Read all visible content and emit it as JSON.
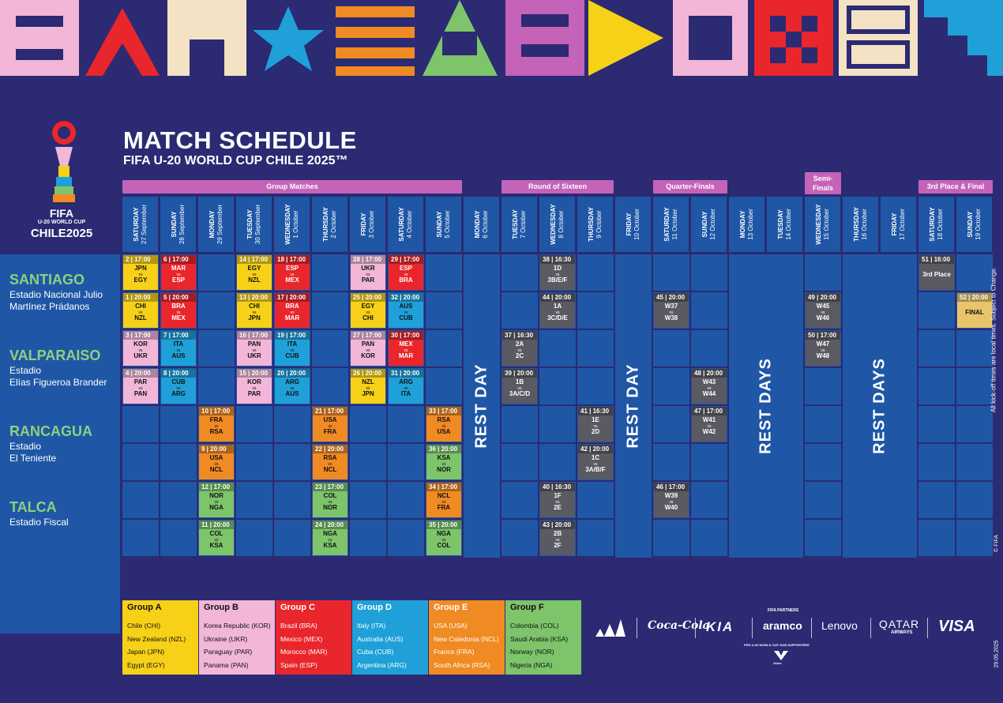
{
  "header": {
    "title": "MATCH SCHEDULE",
    "subtitle": "FIFA U-20 WORLD CUP CHILE 2025™"
  },
  "logo": {
    "line1": "FIFA",
    "line2": "U-20 WORLD CUP",
    "line3": "CHILE2025"
  },
  "stages": {
    "group": "Group Matches",
    "r16": "Round of Sixteen",
    "qf": "Quarter-Finals",
    "sf": "Semi-Finals",
    "final": "3rd Place & Final"
  },
  "days": [
    {
      "wd": "SATURDAY",
      "dt": "27 September"
    },
    {
      "wd": "SUNDAY",
      "dt": "28 September"
    },
    {
      "wd": "MONDAY",
      "dt": "29 September"
    },
    {
      "wd": "TUESDAY",
      "dt": "30 September"
    },
    {
      "wd": "WEDNESDAY",
      "dt": "1 October"
    },
    {
      "wd": "THURSDAY",
      "dt": "2 October"
    },
    {
      "wd": "FRIDAY",
      "dt": "3 October"
    },
    {
      "wd": "SATURDAY",
      "dt": "4 October"
    },
    {
      "wd": "SUNDAY",
      "dt": "5 October"
    },
    {
      "wd": "MONDAY",
      "dt": "6 October"
    },
    {
      "wd": "TUESDAY",
      "dt": "7 October"
    },
    {
      "wd": "WEDNESDAY",
      "dt": "8 October"
    },
    {
      "wd": "THURSDAY",
      "dt": "9 October"
    },
    {
      "wd": "FRIDAY",
      "dt": "10 October"
    },
    {
      "wd": "SATURDAY",
      "dt": "11 October"
    },
    {
      "wd": "SUNDAY",
      "dt": "12 October"
    },
    {
      "wd": "MONDAY",
      "dt": "13 October"
    },
    {
      "wd": "TUESDAY",
      "dt": "14 October"
    },
    {
      "wd": "WEDNESDAY",
      "dt": "15 October"
    },
    {
      "wd": "THURSDAY",
      "dt": "16 October"
    },
    {
      "wd": "FRIDAY",
      "dt": "17 October"
    },
    {
      "wd": "SATURDAY",
      "dt": "18 October"
    },
    {
      "wd": "SUNDAY",
      "dt": "19 October"
    }
  ],
  "venues": [
    {
      "city": "SANTIAGO",
      "stadium1": "Estadio Nacional Julio",
      "stadium2": "Martínez Prádanos"
    },
    {
      "city": "VALPARAISO",
      "stadium1": "Estadio",
      "stadium2": "Elías Figueroa Brander"
    },
    {
      "city": "RANCAGUA",
      "stadium1": "Estadio",
      "stadium2": "El Teniente"
    },
    {
      "city": "TALCA",
      "stadium1": "Estadio Fiscal",
      "stadium2": ""
    }
  ],
  "rest": {
    "day": "REST DAY",
    "days": "REST DAYS"
  },
  "colors": {
    "A": "#f7d117",
    "B": "#f2b6d8",
    "C": "#e8262b",
    "D": "#1fa0d8",
    "E": "#f08a22",
    "F": "#7dc46b",
    "KO": "#5a5a63",
    "FINAL": "#e8c56a"
  },
  "matches": [
    {
      "num": "2",
      "time": "17:00",
      "t1": "JPN",
      "t2": "EGY",
      "g": "A",
      "d": 0,
      "r": 0
    },
    {
      "num": "1",
      "time": "20:00",
      "t1": "CHI",
      "t2": "NZL",
      "g": "A",
      "d": 0,
      "r": 1
    },
    {
      "num": "3",
      "time": "17:00",
      "t1": "KOR",
      "t2": "UKR",
      "g": "B",
      "d": 0,
      "r": 2
    },
    {
      "num": "4",
      "time": "20:00",
      "t1": "PAR",
      "t2": "PAN",
      "g": "B",
      "d": 0,
      "r": 3
    },
    {
      "num": "6",
      "time": "17:00",
      "t1": "MAR",
      "t2": "ESP",
      "g": "C",
      "d": 1,
      "r": 0
    },
    {
      "num": "5",
      "time": "20:00",
      "t1": "BRA",
      "t2": "MEX",
      "g": "C",
      "d": 1,
      "r": 1
    },
    {
      "num": "7",
      "time": "17:00",
      "t1": "ITA",
      "t2": "AUS",
      "g": "D",
      "d": 1,
      "r": 2
    },
    {
      "num": "8",
      "time": "20:00",
      "t1": "CUB",
      "t2": "ARG",
      "g": "D",
      "d": 1,
      "r": 3
    },
    {
      "num": "10",
      "time": "17:00",
      "t1": "FRA",
      "t2": "RSA",
      "g": "E",
      "d": 2,
      "r": 4
    },
    {
      "num": "9",
      "time": "20:00",
      "t1": "USA",
      "t2": "NCL",
      "g": "E",
      "d": 2,
      "r": 5
    },
    {
      "num": "12",
      "time": "17:00",
      "t1": "NOR",
      "t2": "NGA",
      "g": "F",
      "d": 2,
      "r": 6
    },
    {
      "num": "11",
      "time": "20:00",
      "t1": "COL",
      "t2": "KSA",
      "g": "F",
      "d": 2,
      "r": 7
    },
    {
      "num": "14",
      "time": "17:00",
      "t1": "EGY",
      "t2": "NZL",
      "g": "A",
      "d": 3,
      "r": 0
    },
    {
      "num": "13",
      "time": "20:00",
      "t1": "CHI",
      "t2": "JPN",
      "g": "A",
      "d": 3,
      "r": 1
    },
    {
      "num": "16",
      "time": "17:00",
      "t1": "PAN",
      "t2": "UKR",
      "g": "B",
      "d": 3,
      "r": 2
    },
    {
      "num": "15",
      "time": "20:00",
      "t1": "KOR",
      "t2": "PAR",
      "g": "B",
      "d": 3,
      "r": 3
    },
    {
      "num": "18",
      "time": "17:00",
      "t1": "ESP",
      "t2": "MEX",
      "g": "C",
      "d": 4,
      "r": 0
    },
    {
      "num": "17",
      "time": "20:00",
      "t1": "BRA",
      "t2": "MAR",
      "g": "C",
      "d": 4,
      "r": 1
    },
    {
      "num": "19",
      "time": "17:00",
      "t1": "ITA",
      "t2": "CUB",
      "g": "D",
      "d": 4,
      "r": 2
    },
    {
      "num": "20",
      "time": "20:00",
      "t1": "ARG",
      "t2": "AUS",
      "g": "D",
      "d": 4,
      "r": 3
    },
    {
      "num": "21",
      "time": "17:00",
      "t1": "USA",
      "t2": "FRA",
      "g": "E",
      "d": 5,
      "r": 4
    },
    {
      "num": "22",
      "time": "20:00",
      "t1": "RSA",
      "t2": "NCL",
      "g": "E",
      "d": 5,
      "r": 5
    },
    {
      "num": "23",
      "time": "17:00",
      "t1": "COL",
      "t2": "NOR",
      "g": "F",
      "d": 5,
      "r": 6
    },
    {
      "num": "24",
      "time": "20:00",
      "t1": "NGA",
      "t2": "KSA",
      "g": "F",
      "d": 5,
      "r": 7
    },
    {
      "num": "28",
      "time": "17:00",
      "t1": "UKR",
      "t2": "PAR",
      "g": "B",
      "d": 6,
      "r": 0
    },
    {
      "num": "25",
      "time": "20:00",
      "t1": "EGY",
      "t2": "CHI",
      "g": "A",
      "d": 6,
      "r": 1
    },
    {
      "num": "27",
      "time": "17:00",
      "t1": "PAN",
      "t2": "KOR",
      "g": "B",
      "d": 6,
      "r": 2
    },
    {
      "num": "26",
      "time": "20:00",
      "t1": "NZL",
      "t2": "JPN",
      "g": "A",
      "d": 6,
      "r": 3
    },
    {
      "num": "29",
      "time": "17:00",
      "t1": "ESP",
      "t2": "BRA",
      "g": "C",
      "d": 7,
      "r": 0
    },
    {
      "num": "32",
      "time": "20:00",
      "t1": "AUS",
      "t2": "CUB",
      "g": "D",
      "d": 7,
      "r": 1
    },
    {
      "num": "30",
      "time": "17:00",
      "t1": "MEX",
      "t2": "MAR",
      "g": "C",
      "d": 7,
      "r": 2
    },
    {
      "num": "31",
      "time": "20:00",
      "t1": "ARG",
      "t2": "ITA",
      "g": "D",
      "d": 7,
      "r": 3
    },
    {
      "num": "33",
      "time": "17:00",
      "t1": "RSA",
      "t2": "USA",
      "g": "E",
      "d": 8,
      "r": 4
    },
    {
      "num": "36",
      "time": "20:00",
      "t1": "KSA",
      "t2": "NOR",
      "g": "F",
      "d": 8,
      "r": 5
    },
    {
      "num": "34",
      "time": "17:00",
      "t1": "NCL",
      "t2": "FRA",
      "g": "E",
      "d": 8,
      "r": 6
    },
    {
      "num": "35",
      "time": "20:00",
      "t1": "NGA",
      "t2": "COL",
      "g": "F",
      "d": 8,
      "r": 7
    },
    {
      "num": "37",
      "time": "16:30",
      "t1": "2A",
      "t2": "2C",
      "g": "KO",
      "d": 10,
      "r": 2
    },
    {
      "num": "39",
      "time": "20:00",
      "t1": "1B",
      "t2": "3A/C/D",
      "g": "KO",
      "d": 10,
      "r": 3
    },
    {
      "num": "38",
      "time": "16:30",
      "t1": "1D",
      "t2": "3B/E/F",
      "g": "KO",
      "d": 11,
      "r": 0
    },
    {
      "num": "44",
      "time": "20:00",
      "t1": "1A",
      "t2": "3C/D/E",
      "g": "KO",
      "d": 11,
      "r": 1
    },
    {
      "num": "40",
      "time": "16:30",
      "t1": "1F",
      "t2": "2E",
      "g": "KO",
      "d": 11,
      "r": 6
    },
    {
      "num": "43",
      "time": "20:00",
      "t1": "2B",
      "t2": "2F",
      "g": "KO",
      "d": 11,
      "r": 7
    },
    {
      "num": "41",
      "time": "16:30",
      "t1": "1E",
      "t2": "2D",
      "g": "KO",
      "d": 12,
      "r": 4
    },
    {
      "num": "42",
      "time": "20:00",
      "t1": "1C",
      "t2": "3A/B/F",
      "g": "KO",
      "d": 12,
      "r": 5
    },
    {
      "num": "45",
      "time": "20:00",
      "t1": "W37",
      "t2": "W38",
      "g": "KO",
      "d": 14,
      "r": 1
    },
    {
      "num": "46",
      "time": "17:00",
      "t1": "W39",
      "t2": "W40",
      "g": "KO",
      "d": 14,
      "r": 6
    },
    {
      "num": "48",
      "time": "20:00",
      "t1": "W43",
      "t2": "W44",
      "g": "KO",
      "d": 15,
      "r": 3
    },
    {
      "num": "47",
      "time": "17:00",
      "t1": "W41",
      "t2": "W42",
      "g": "KO",
      "d": 15,
      "r": 4
    },
    {
      "num": "49",
      "time": "20:00",
      "t1": "W45",
      "t2": "W46",
      "g": "KO",
      "d": 18,
      "r": 1
    },
    {
      "num": "50",
      "time": "17:00",
      "t1": "W47",
      "t2": "W48",
      "g": "KO",
      "d": 18,
      "r": 2
    },
    {
      "num": "51",
      "time": "16:00",
      "t1": "3rd Place",
      "t2": "",
      "g": "KO",
      "d": 21,
      "r": 0
    },
    {
      "num": "52",
      "time": "20:00",
      "t1": "FINAL",
      "t2": "",
      "g": "FINAL",
      "d": 22,
      "r": 1
    }
  ],
  "vs": "vs",
  "groups": [
    {
      "label": "Group A",
      "key": "A",
      "teams": [
        "Chile (CHI)",
        "New Zealand (NZL)",
        "Japan (JPN)",
        "Egypt (EGY)"
      ]
    },
    {
      "label": "Group B",
      "key": "B",
      "teams": [
        "Korea Republic (KOR)",
        "Ukraine (UKR)",
        "Paraguay (PAR)",
        "Panama (PAN)"
      ]
    },
    {
      "label": "Group C",
      "key": "C",
      "teams": [
        "Brazil (BRA)",
        "Mexico (MEX)",
        "Morocco (MAR)",
        "Spain (ESP)"
      ]
    },
    {
      "label": "Group D",
      "key": "D",
      "teams": [
        "Italy (ITA)",
        "Australia (AUS)",
        "Cuba (CUB)",
        "Argentina (ARG)"
      ]
    },
    {
      "label": "Group E",
      "key": "E",
      "teams": [
        "USA (USA)",
        "New Caledonia (NCL)",
        "France (FRA)",
        "South Africa (RSA)"
      ]
    },
    {
      "label": "Group F",
      "key": "F",
      "teams": [
        "Colombia (COL)",
        "Saudi Arabia (KSA)",
        "Norway (NOR)",
        "Nigeria (NGA)"
      ]
    }
  ],
  "sponsors": {
    "partners_label": "FIFA PARTNERS",
    "supporters_label": "FIFA U-20 WORLD CUP 2025 SUPPORTERS",
    "adidas": "adidas",
    "coca": "Coca-Cola",
    "kia": "KIA",
    "aramco": "aramco",
    "lenovo": "Lenovo",
    "qatar1": "QATAR",
    "qatar2": "AIRWAYS",
    "visa": "VISA",
    "volvo": "Volvo"
  },
  "footer": {
    "note": "All kick-off times are local times. Subject to Change.",
    "copyright": "© FIFA",
    "date": "29.05.2025"
  }
}
